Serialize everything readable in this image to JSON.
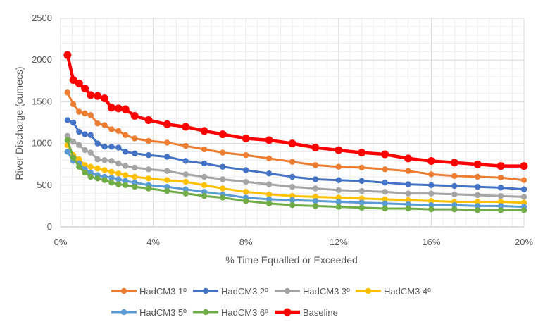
{
  "chart_data": {
    "type": "line",
    "xlabel": "% Time Equalled or Exceeded",
    "ylabel": "River Discharge (cumecs)",
    "xlim": [
      0,
      20
    ],
    "ylim": [
      0,
      2500
    ],
    "x_unit": "%",
    "x_ticks": [
      "0%",
      "4%",
      "8%",
      "12%",
      "16%",
      "20%"
    ],
    "y_ticks": [
      "0",
      "500",
      "1000",
      "1500",
      "2000",
      "2500"
    ],
    "grid": true,
    "legend_position": "bottom",
    "series": [
      {
        "name": "HadCM3 1º",
        "color": "#ED7D31",
        "x": [
          0.3,
          0.55,
          0.8,
          1.05,
          1.3,
          1.6,
          1.9,
          2.2,
          2.5,
          2.8,
          3.2,
          3.8,
          4.6,
          5.4,
          6.2,
          7.0,
          8.0,
          9.0,
          10.0,
          11.0,
          12.0,
          13.0,
          14.0,
          15.0,
          16.0,
          17.0,
          18.0,
          19.0,
          20.0
        ],
        "values": [
          1610,
          1470,
          1380,
          1360,
          1340,
          1240,
          1220,
          1170,
          1150,
          1100,
          1060,
          1030,
          1010,
          970,
          930,
          890,
          860,
          820,
          780,
          740,
          720,
          710,
          690,
          670,
          630,
          610,
          600,
          590,
          560
        ]
      },
      {
        "name": "HadCM3 2º",
        "color": "#4472C4",
        "x": [
          0.3,
          0.55,
          0.8,
          1.05,
          1.3,
          1.6,
          1.9,
          2.2,
          2.5,
          2.8,
          3.2,
          3.8,
          4.6,
          5.4,
          6.2,
          7.0,
          8.0,
          9.0,
          10.0,
          11.0,
          12.0,
          13.0,
          14.0,
          15.0,
          16.0,
          17.0,
          18.0,
          19.0,
          20.0
        ],
        "values": [
          1280,
          1250,
          1140,
          1110,
          1100,
          1000,
          960,
          960,
          950,
          900,
          880,
          860,
          840,
          790,
          760,
          720,
          680,
          640,
          600,
          570,
          560,
          550,
          530,
          510,
          500,
          490,
          480,
          470,
          450
        ]
      },
      {
        "name": "HadCM3 3º",
        "color": "#A5A5A5",
        "x": [
          0.3,
          0.55,
          0.8,
          1.05,
          1.3,
          1.6,
          1.9,
          2.2,
          2.5,
          2.8,
          3.2,
          3.8,
          4.6,
          5.4,
          6.2,
          7.0,
          8.0,
          9.0,
          10.0,
          11.0,
          12.0,
          13.0,
          14.0,
          15.0,
          16.0,
          17.0,
          18.0,
          19.0,
          20.0
        ],
        "values": [
          1090,
          1020,
          980,
          920,
          890,
          810,
          800,
          790,
          760,
          730,
          710,
          690,
          670,
          630,
          600,
          570,
          540,
          510,
          480,
          460,
          440,
          430,
          420,
          400,
          400,
          390,
          380,
          370,
          360
        ]
      },
      {
        "name": "HadCM3 4º",
        "color": "#FFC000",
        "x": [
          0.3,
          0.55,
          0.8,
          1.05,
          1.3,
          1.6,
          1.9,
          2.2,
          2.5,
          2.8,
          3.2,
          3.8,
          4.6,
          5.4,
          6.2,
          7.0,
          8.0,
          9.0,
          10.0,
          11.0,
          12.0,
          13.0,
          14.0,
          15.0,
          16.0,
          17.0,
          18.0,
          19.0,
          20.0
        ],
        "values": [
          980,
          860,
          810,
          740,
          720,
          700,
          680,
          660,
          640,
          620,
          600,
          580,
          560,
          540,
          500,
          460,
          420,
          390,
          370,
          360,
          350,
          340,
          330,
          320,
          310,
          300,
          300,
          300,
          290
        ]
      },
      {
        "name": "HadCM3 5º",
        "color": "#5B9BD5",
        "x": [
          0.3,
          0.55,
          0.8,
          1.05,
          1.3,
          1.6,
          1.9,
          2.2,
          2.5,
          2.8,
          3.2,
          3.8,
          4.6,
          5.4,
          6.2,
          7.0,
          8.0,
          9.0,
          10.0,
          11.0,
          12.0,
          13.0,
          14.0,
          15.0,
          16.0,
          17.0,
          18.0,
          19.0,
          20.0
        ],
        "values": [
          900,
          790,
          760,
          690,
          650,
          620,
          600,
          590,
          570,
          550,
          530,
          500,
          480,
          450,
          420,
          390,
          350,
          330,
          320,
          310,
          300,
          290,
          280,
          270,
          260,
          260,
          250,
          250,
          240
        ]
      },
      {
        "name": "HadCM3 6º",
        "color": "#70AD47",
        "x": [
          0.3,
          0.55,
          0.8,
          1.05,
          1.3,
          1.6,
          1.9,
          2.2,
          2.5,
          2.8,
          3.2,
          3.8,
          4.6,
          5.4,
          6.2,
          7.0,
          8.0,
          9.0,
          10.0,
          11.0,
          12.0,
          13.0,
          14.0,
          15.0,
          16.0,
          17.0,
          18.0,
          19.0,
          20.0
        ],
        "values": [
          1040,
          830,
          720,
          650,
          600,
          580,
          560,
          530,
          510,
          500,
          480,
          460,
          430,
          400,
          370,
          350,
          310,
          280,
          260,
          250,
          240,
          230,
          220,
          220,
          210,
          210,
          200,
          200,
          200
        ]
      },
      {
        "name": "Baseline",
        "color": "#FF0000",
        "x": [
          0.3,
          0.55,
          0.8,
          1.05,
          1.3,
          1.6,
          1.9,
          2.2,
          2.5,
          2.8,
          3.2,
          3.8,
          4.6,
          5.4,
          6.2,
          7.0,
          8.0,
          9.0,
          10.0,
          11.0,
          12.0,
          13.0,
          14.0,
          15.0,
          16.0,
          17.0,
          18.0,
          19.0,
          20.0
        ],
        "values": [
          2060,
          1760,
          1720,
          1660,
          1580,
          1570,
          1540,
          1430,
          1420,
          1410,
          1330,
          1280,
          1230,
          1200,
          1150,
          1110,
          1060,
          1040,
          1000,
          950,
          920,
          890,
          870,
          820,
          790,
          770,
          750,
          730,
          730
        ]
      }
    ]
  }
}
